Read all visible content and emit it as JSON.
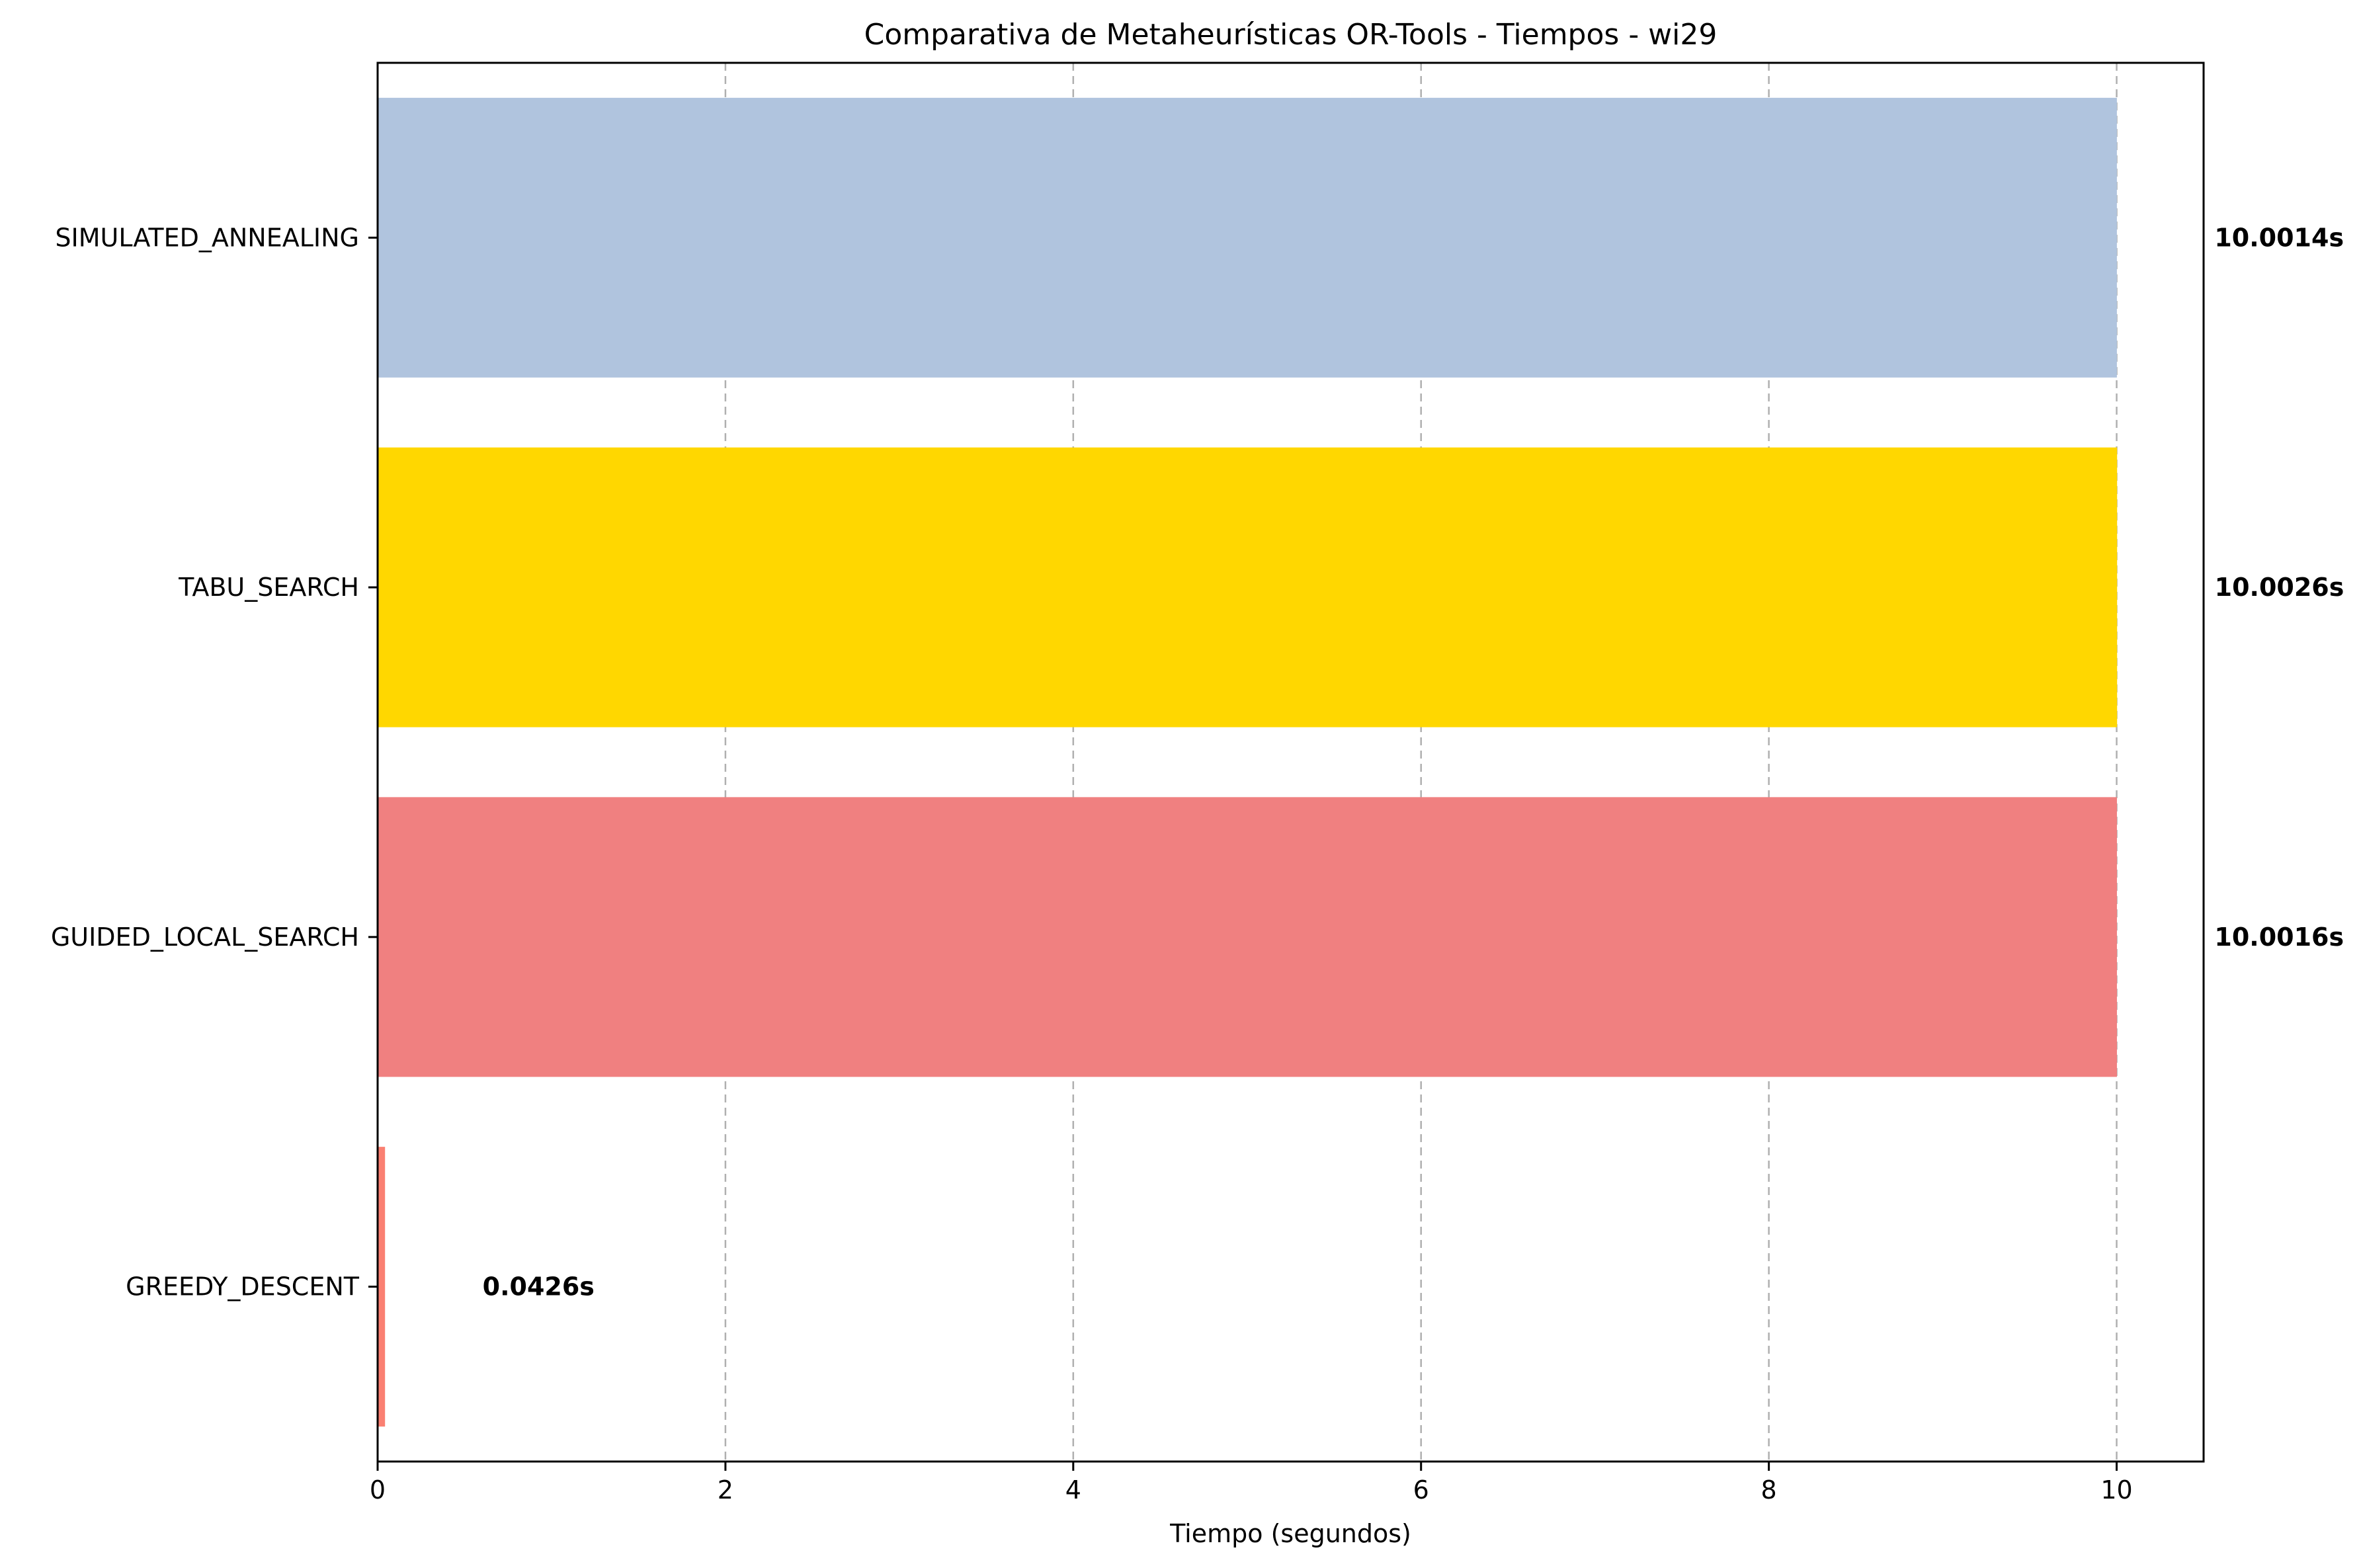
{
  "chart_data": {
    "type": "bar",
    "orientation": "horizontal",
    "title": "Comparativa de Metaheurísticas OR-Tools - Tiempos - wi29",
    "xlabel": "Tiempo (segundos)",
    "ylabel": "",
    "xlim": [
      0,
      10.5
    ],
    "xticks": [
      0,
      2,
      4,
      6,
      8,
      10
    ],
    "grid": "x-dashed",
    "categories": [
      "SIMULATED_ANNEALING",
      "TABU_SEARCH",
      "GUIDED_LOCAL_SEARCH",
      "GREEDY_DESCENT"
    ],
    "values": [
      10.0014,
      10.0026,
      10.0016,
      0.0426
    ],
    "data_labels": [
      "10.0014s",
      "10.0026s",
      "10.0016s",
      "0.0426s"
    ],
    "colors": [
      "#b0c4de",
      "#ffd700",
      "#f08080",
      "#fa8072"
    ]
  }
}
